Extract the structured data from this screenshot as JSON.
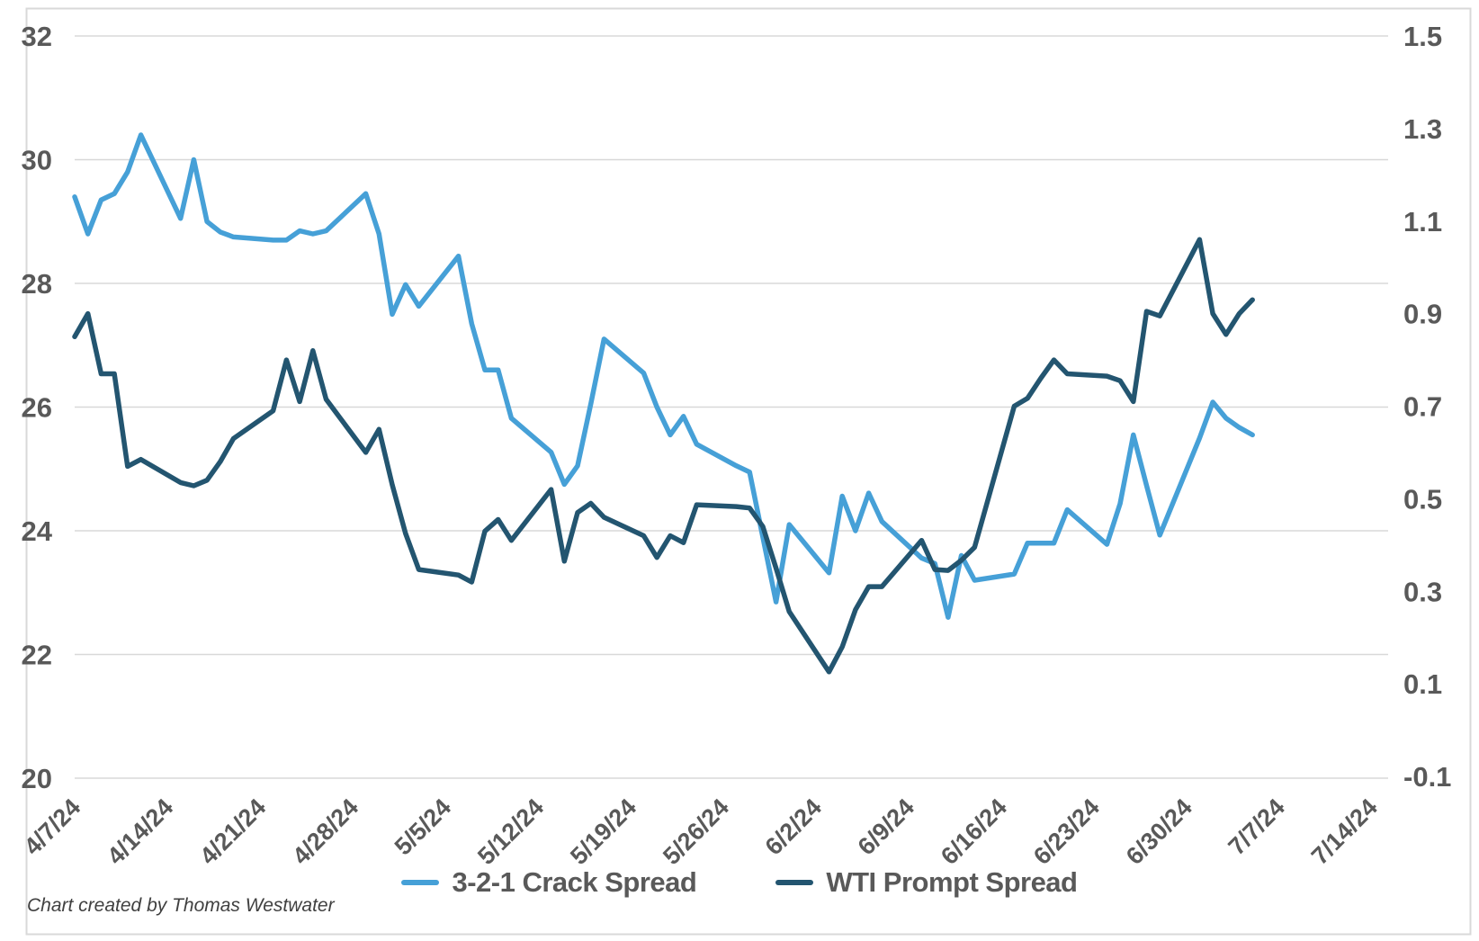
{
  "footnote": "Chart created by Thomas Westwater",
  "legend": {
    "items": [
      {
        "label": "3-2-1 Crack Spread",
        "color": "#46A0D7"
      },
      {
        "label": "WTI Prompt Spread",
        "color": "#235570"
      }
    ]
  },
  "chart_data": {
    "type": "line",
    "title": "",
    "xlabel": "",
    "ylabel_left": "",
    "ylabel_right": "",
    "grid": "horizontal",
    "grid_color": "#D8D8D8",
    "frame_color": "#D9D9D9",
    "label_color": "#595959",
    "legend_position": "bottom",
    "x": [
      "4/7/24",
      "4/8/24",
      "4/9/24",
      "4/10/24",
      "4/11/24",
      "4/12/24",
      "4/15/24",
      "4/16/24",
      "4/17/24",
      "4/18/24",
      "4/19/24",
      "4/22/24",
      "4/23/24",
      "4/24/24",
      "4/25/24",
      "4/26/24",
      "4/29/24",
      "4/30/24",
      "5/1/24",
      "5/2/24",
      "5/3/24",
      "5/6/24",
      "5/7/24",
      "5/8/24",
      "5/9/24",
      "5/10/24",
      "5/13/24",
      "5/14/24",
      "5/15/24",
      "5/16/24",
      "5/17/24",
      "5/20/24",
      "5/21/24",
      "5/22/24",
      "5/23/24",
      "5/24/24",
      "5/27/24",
      "5/28/24",
      "5/29/24",
      "5/30/24",
      "5/31/24",
      "6/3/24",
      "6/4/24",
      "6/5/24",
      "6/6/24",
      "6/7/24",
      "6/10/24",
      "6/11/24",
      "6/12/24",
      "6/13/24",
      "6/14/24",
      "6/17/24",
      "6/18/24",
      "6/19/24",
      "6/20/24",
      "6/21/24",
      "6/24/24",
      "6/25/24",
      "6/26/24",
      "6/27/24",
      "6/28/24",
      "7/1/24",
      "7/2/24",
      "7/3/24",
      "7/4/24",
      "7/5/24"
    ],
    "x_tick_labels": [
      "4/7/24",
      "4/14/24",
      "4/21/24",
      "4/28/24",
      "5/5/24",
      "5/12/24",
      "5/19/24",
      "5/26/24",
      "6/2/24",
      "6/9/24",
      "6/16/24",
      "6/23/24",
      "6/30/24",
      "7/7/24",
      "7/14/24"
    ],
    "x_range": [
      "4/7/24",
      "7/14/24"
    ],
    "y_left": {
      "min": 20,
      "max": 32,
      "step": 2,
      "labels": [
        "32",
        "30",
        "28",
        "26",
        "24",
        "22",
        "20"
      ]
    },
    "y_right": {
      "min": -0.1,
      "max": 1.5,
      "step": 0.2,
      "labels": [
        "1.5",
        "1.3",
        "1.1",
        "0.9",
        "0.7",
        "0.5",
        "0.3",
        "0.1",
        "-0.1"
      ]
    },
    "series": [
      {
        "name": "3-2-1 Crack Spread",
        "axis": "left",
        "color": "#46A0D7",
        "values": [
          29.4,
          28.8,
          29.35,
          29.45,
          29.8,
          30.4,
          29.05,
          30.0,
          29.0,
          28.83,
          28.75,
          28.7,
          28.7,
          28.85,
          28.8,
          28.85,
          29.45,
          28.8,
          27.5,
          27.98,
          27.63,
          28.44,
          27.35,
          26.6,
          26.6,
          25.82,
          25.27,
          24.75,
          25.05,
          26.05,
          27.1,
          26.55,
          26.0,
          25.55,
          25.85,
          25.4,
          25.05,
          24.95,
          23.9,
          22.85,
          24.1,
          23.32,
          24.56,
          24.0,
          24.61,
          24.15,
          23.56,
          23.47,
          22.6,
          23.6,
          23.2,
          23.3,
          23.8,
          23.8,
          23.8,
          24.34,
          23.78,
          24.44,
          25.55,
          24.73,
          23.93,
          25.5,
          26.08,
          25.82,
          25.67,
          25.55
        ]
      },
      {
        "name": "WTI Prompt Spread",
        "axis": "right",
        "color": "#235570",
        "values": [
          0.85,
          0.9,
          0.77,
          0.77,
          0.57,
          0.585,
          0.535,
          0.528,
          0.54,
          0.58,
          0.63,
          0.69,
          0.8,
          0.71,
          0.82,
          0.715,
          0.6,
          0.65,
          0.53,
          0.425,
          0.347,
          0.335,
          0.32,
          0.43,
          0.455,
          0.41,
          0.52,
          0.365,
          0.47,
          0.49,
          0.46,
          0.42,
          0.373,
          0.42,
          0.405,
          0.487,
          0.483,
          0.48,
          0.44,
          0.35,
          0.256,
          0.126,
          0.18,
          0.26,
          0.31,
          0.31,
          0.41,
          0.347,
          0.345,
          0.367,
          0.395,
          0.7,
          0.717,
          0.76,
          0.8,
          0.77,
          0.765,
          0.755,
          0.71,
          0.905,
          0.895,
          1.06,
          0.9,
          0.855,
          0.9,
          0.93
        ]
      }
    ]
  }
}
